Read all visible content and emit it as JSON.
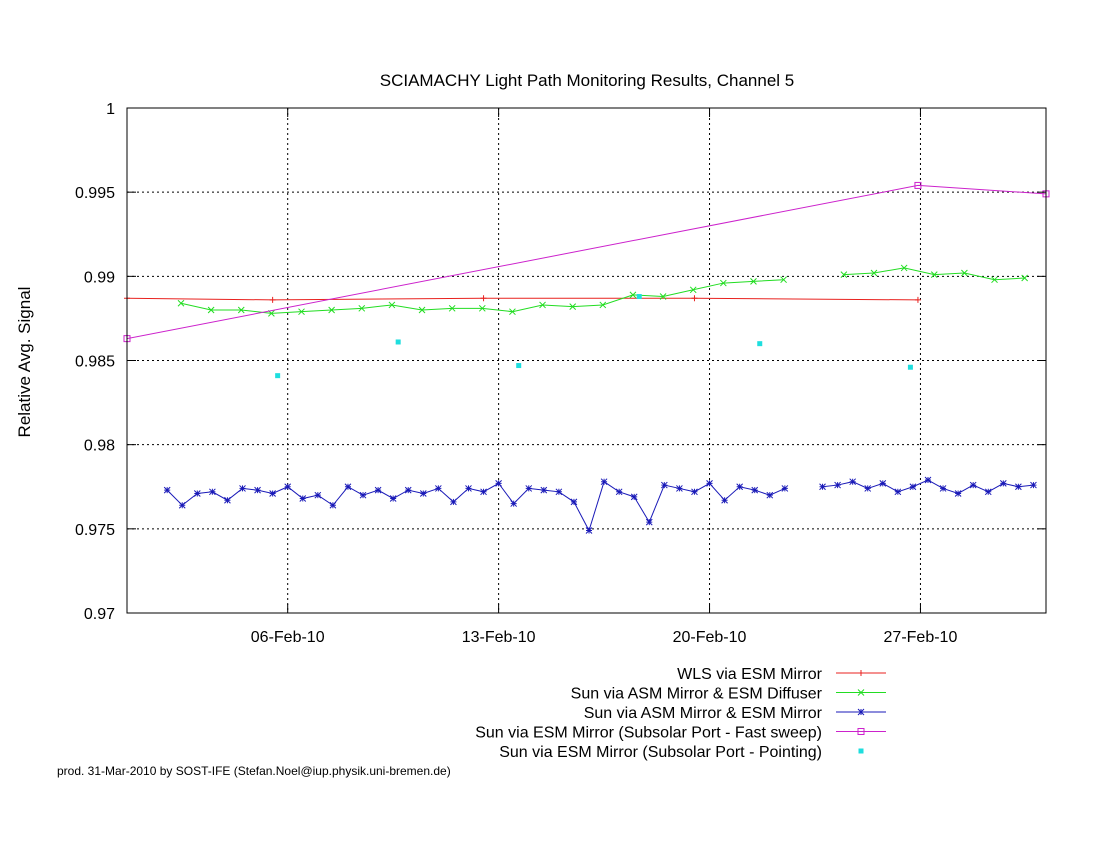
{
  "chart_data": {
    "type": "line",
    "title": "SCIAMACHY Light Path Monitoring Results, Channel 5",
    "xlabel": "",
    "ylabel": "Relative Avg. Signal",
    "x_unit": "date",
    "xlim": [
      "2010-01-31T16:00",
      "2010-03-03T04:00"
    ],
    "ylim": [
      0.97,
      1.0
    ],
    "x_ticks": [
      {
        "date": "2010-02-06",
        "label": "06-Feb-10"
      },
      {
        "date": "2010-02-13",
        "label": "13-Feb-10"
      },
      {
        "date": "2010-02-20",
        "label": "20-Feb-10"
      },
      {
        "date": "2010-02-27",
        "label": "27-Feb-10"
      }
    ],
    "y_ticks": [
      0.97,
      0.975,
      0.98,
      0.985,
      0.99,
      0.995,
      1
    ],
    "y_tick_labels": [
      "0.97",
      "0.975",
      "0.98",
      "0.985",
      "0.99",
      "0.995",
      "1"
    ],
    "grid": true,
    "legend_position": "bottom-right",
    "series": [
      {
        "name": "WLS via ESM Mirror",
        "color": "#e8221f",
        "marker": "plus",
        "style": "linespoints",
        "x": [
          "2010-01-31T16:00",
          "2010-02-05T12:00",
          "2010-02-12T12:00",
          "2010-02-19T12:00",
          "2010-02-26T22:00"
        ],
        "values": [
          0.9887,
          0.9886,
          0.9887,
          0.9887,
          0.9886
        ]
      },
      {
        "name": "Sun via ASM Mirror & ESM Diffuser",
        "color": "#22dd22",
        "marker": "cross",
        "style": "linespoints",
        "x": [
          "2010-02-02T11:00",
          "2010-02-03T11:00",
          "2010-02-04T11:00",
          "2010-02-05T11:00",
          "2010-02-06T11:00",
          "2010-02-07T11:00",
          "2010-02-08T11:00",
          "2010-02-09T11:00",
          "2010-02-10T11:00",
          "2010-02-11T11:00",
          "2010-02-12T11:00",
          "2010-02-13T11:00",
          "2010-02-14T11:00",
          "2010-02-15T11:00",
          "2010-02-16T11:00",
          "2010-02-17T11:00",
          "2010-02-18T11:00",
          "2010-02-19T11:00",
          "2010-02-20T11:00",
          "2010-02-21T11:00",
          "2010-02-22T11:00",
          null,
          "2010-02-24T11:00",
          "2010-02-25T11:00",
          "2010-02-26T11:00",
          "2010-02-27T11:00",
          "2010-02-28T11:00",
          "2010-03-01T11:00",
          "2010-03-02T11:00"
        ],
        "values": [
          0.9884,
          0.988,
          0.988,
          0.9878,
          0.9879,
          0.988,
          0.9881,
          0.9883,
          0.988,
          0.9881,
          0.9881,
          0.9879,
          0.9883,
          0.9882,
          0.9883,
          0.9889,
          0.9888,
          0.9892,
          0.9896,
          0.9897,
          0.9898,
          null,
          0.9901,
          0.9902,
          0.9905,
          0.9901,
          0.9902,
          0.9898,
          0.9899
        ]
      },
      {
        "name": "Sun via ASM Mirror & ESM Mirror",
        "color": "#1a1ab8",
        "marker": "star",
        "style": "linespoints",
        "x": [
          "2010-02-02T00:00",
          "2010-02-02T12:00",
          "2010-02-03T00:00",
          "2010-02-03T12:00",
          "2010-02-04T00:00",
          "2010-02-04T12:00",
          "2010-02-05T00:00",
          "2010-02-05T12:00",
          "2010-02-06T00:00",
          "2010-02-06T12:00",
          "2010-02-07T00:00",
          "2010-02-07T12:00",
          "2010-02-08T00:00",
          "2010-02-08T12:00",
          "2010-02-09T00:00",
          "2010-02-09T12:00",
          "2010-02-10T00:00",
          "2010-02-10T12:00",
          "2010-02-11T00:00",
          "2010-02-11T12:00",
          "2010-02-12T00:00",
          "2010-02-12T12:00",
          "2010-02-13T00:00",
          "2010-02-13T12:00",
          "2010-02-14T00:00",
          "2010-02-14T12:00",
          "2010-02-15T00:00",
          "2010-02-15T12:00",
          "2010-02-16T00:00",
          "2010-02-16T12:00",
          "2010-02-17T00:00",
          "2010-02-17T12:00",
          "2010-02-18T00:00",
          "2010-02-18T12:00",
          "2010-02-19T00:00",
          "2010-02-19T12:00",
          "2010-02-20T00:00",
          "2010-02-20T12:00",
          "2010-02-21T00:00",
          "2010-02-21T12:00",
          "2010-02-22T00:00",
          "2010-02-22T12:00",
          null,
          "2010-02-23T18:00",
          "2010-02-24T06:00",
          "2010-02-24T18:00",
          "2010-02-25T06:00",
          "2010-02-25T18:00",
          "2010-02-26T06:00",
          "2010-02-26T18:00",
          "2010-02-27T06:00",
          "2010-02-27T18:00",
          "2010-02-28T06:00",
          "2010-02-28T18:00",
          "2010-03-01T06:00",
          "2010-03-01T18:00",
          "2010-03-02T06:00",
          "2010-03-02T18:00"
        ],
        "values": [
          0.9773,
          0.9764,
          0.9771,
          0.9772,
          0.9767,
          0.9774,
          0.9773,
          0.9771,
          0.9775,
          0.9768,
          0.977,
          0.9764,
          0.9775,
          0.977,
          0.9773,
          0.9768,
          0.9773,
          0.9771,
          0.9774,
          0.9766,
          0.9774,
          0.9772,
          0.9777,
          0.9765,
          0.9774,
          0.9773,
          0.9772,
          0.9766,
          0.9749,
          0.9778,
          0.9772,
          0.9769,
          0.9754,
          0.9776,
          0.9774,
          0.9772,
          0.9777,
          0.9767,
          0.9775,
          0.9773,
          0.977,
          0.9774,
          null,
          0.9775,
          0.9776,
          0.9778,
          0.9774,
          0.9777,
          0.9772,
          0.9775,
          0.9779,
          0.9774,
          0.9771,
          0.9776,
          0.9772,
          0.9777,
          0.9775,
          0.9776
        ]
      },
      {
        "name": "Sun via ESM Mirror (Subsolar Port - Fast sweep)",
        "color": "#cc22cc",
        "marker": "square",
        "style": "linespoints",
        "x": [
          "2010-01-31T16:00",
          "2010-02-26T22:00",
          "2010-03-03T04:00"
        ],
        "values": [
          0.9863,
          0.9954,
          0.9949
        ]
      },
      {
        "name": "Sun via ESM Mirror (Subsolar Port - Pointing)",
        "color": "#1edede",
        "marker": "filled-square",
        "style": "points",
        "x": [
          "2010-02-05T16:00",
          "2010-02-09T16:00",
          "2010-02-13T16:00",
          "2010-02-17T16:00",
          "2010-02-21T16:00",
          "2010-02-26T16:00"
        ],
        "values": [
          0.9841,
          0.9861,
          0.9847,
          0.9888,
          0.986,
          0.9846
        ]
      }
    ]
  },
  "credit": "prod. 31-Mar-2010 by SOST-IFE (Stefan.Noel@iup.physik.uni-bremen.de)"
}
